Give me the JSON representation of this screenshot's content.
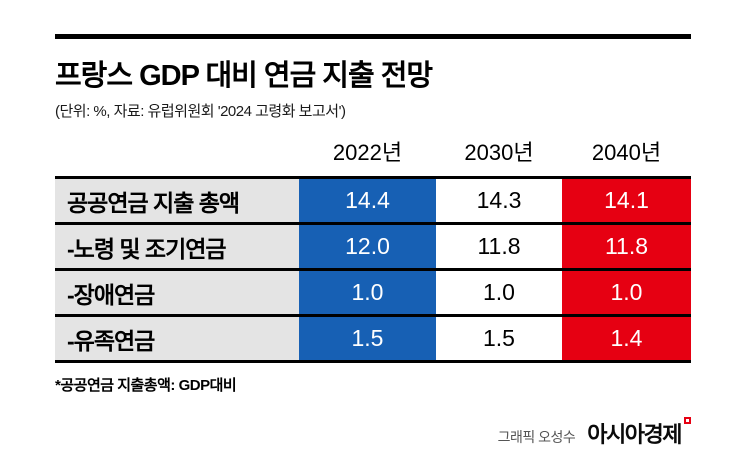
{
  "title": "프랑스 GDP 대비 연금 지출 전망",
  "subtitle": "(단위: %, 자료: 유럽위원회 '2024 고령화 보고서')",
  "table": {
    "columns": [
      "2022년",
      "2030년",
      "2040년"
    ],
    "rows": [
      {
        "label": "공공연금 지출 총액",
        "values": [
          "14.4",
          "14.3",
          "14.1"
        ]
      },
      {
        "label": "-노령 및 조기연금",
        "values": [
          "12.0",
          "11.8",
          "11.8"
        ]
      },
      {
        "label": "-장애연금",
        "values": [
          "1.0",
          "1.0",
          "1.0"
        ]
      },
      {
        "label": "-유족연금",
        "values": [
          "1.5",
          "1.5",
          "1.4"
        ]
      }
    ]
  },
  "footnote": "*공공연금 지출총액: GDP대비",
  "credit": "그래픽 오성수",
  "logo": "아시아경제",
  "colors": {
    "blue": "#1760b4",
    "red": "#e60012",
    "label_bg": "#e4e4e4"
  },
  "chart_data": {
    "type": "table",
    "title": "프랑스 GDP 대비 연금 지출 전망",
    "unit": "%",
    "source": "유럽위원회 '2024 고령화 보고서'",
    "columns": [
      "2022년",
      "2030년",
      "2040년"
    ],
    "rows": [
      {
        "label": "공공연금 지출 총액",
        "values": [
          14.4,
          14.3,
          14.1
        ]
      },
      {
        "label": "-노령 및 조기연금",
        "values": [
          12.0,
          11.8,
          11.8
        ]
      },
      {
        "label": "-장애연금",
        "values": [
          1.0,
          1.0,
          1.0
        ]
      },
      {
        "label": "-유족연금",
        "values": [
          1.5,
          1.5,
          1.4
        ]
      }
    ],
    "column_colors": [
      "#1760b4",
      "#ffffff",
      "#e60012"
    ],
    "note": "*공공연금 지출총액: GDP대비"
  }
}
